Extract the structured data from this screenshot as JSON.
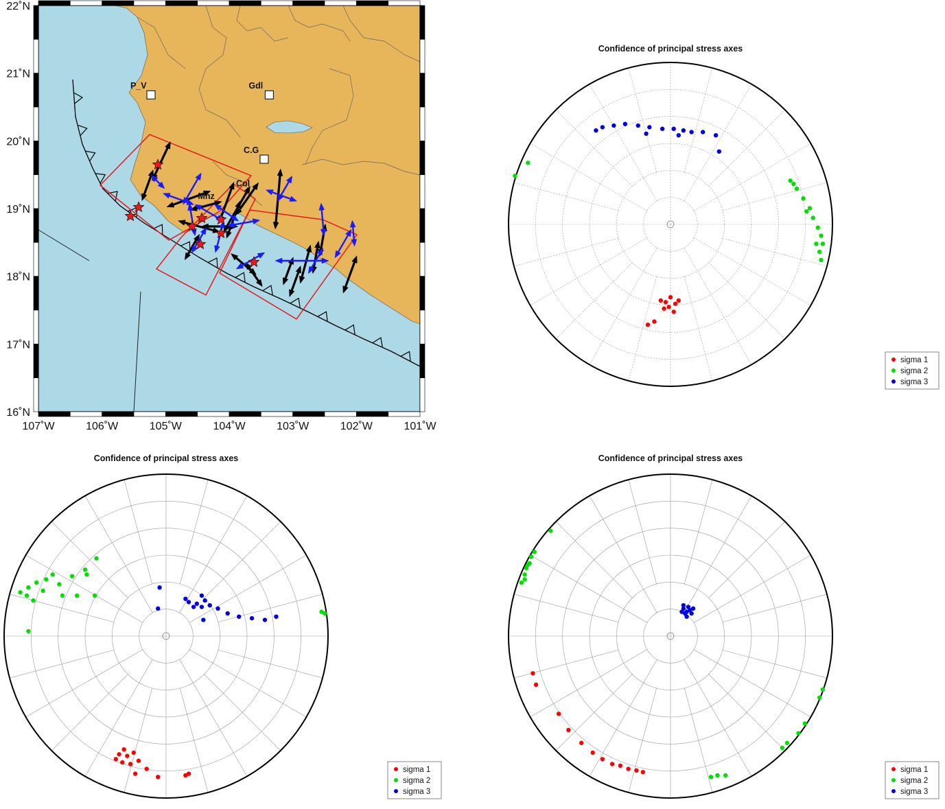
{
  "map": {
    "lat_ticks": [
      "16˚N",
      "17˚N",
      "18˚N",
      "19˚N",
      "20˚N",
      "21˚N",
      "22˚N"
    ],
    "lon_ticks": [
      "107˚W",
      "106˚W",
      "105˚W",
      "104˚W",
      "103˚W",
      "102˚W",
      "101˚W"
    ],
    "lon_range": [
      -107,
      -101
    ],
    "lat_range": [
      16,
      22
    ],
    "cities": [
      {
        "label": "P_V",
        "lon": -105.23,
        "lat": 20.68
      },
      {
        "label": "Gdl",
        "lon": -103.37,
        "lat": 20.68
      },
      {
        "label": "C.G",
        "lon": -103.45,
        "lat": 19.73
      },
      {
        "label": "Mnz",
        "lon": -104.33,
        "lat": 19.05
      },
      {
        "label": "Col",
        "lon": -103.73,
        "lat": 19.24
      }
    ],
    "colors": {
      "sea": "#add8e6",
      "land": "#e8b65a",
      "box": "#e41a1c",
      "sigma1_arrow": "#000000",
      "sigma3_arrow": "#1a1aff",
      "star": "#e41a1c"
    }
  },
  "stereonets": [
    {
      "title": "Confidence of principal stress axes",
      "legend": [
        "sigma 1",
        "sigma 2",
        "sigma 3"
      ],
      "clusters": [
        {
          "name": "sigma 1",
          "color": "#ff0000",
          "points": [
            [
              -0.03,
              -0.48
            ],
            [
              0.03,
              -0.49
            ],
            [
              -0.01,
              -0.51
            ],
            [
              -0.06,
              -0.47
            ],
            [
              0.05,
              -0.47
            ],
            [
              0.0,
              -0.45
            ],
            [
              -0.04,
              -0.52
            ],
            [
              0.02,
              -0.54
            ],
            [
              -0.1,
              -0.6
            ],
            [
              -0.14,
              -0.62
            ]
          ]
        },
        {
          "name": "sigma 2",
          "color": "#00e000",
          "points": [
            [
              0.74,
              0.27
            ],
            [
              0.78,
              0.22
            ],
            [
              0.82,
              0.16
            ],
            [
              0.86,
              0.1
            ],
            [
              0.88,
              0.04
            ],
            [
              0.91,
              -0.02
            ],
            [
              0.93,
              -0.07
            ],
            [
              0.94,
              -0.12
            ],
            [
              0.92,
              -0.17
            ],
            [
              0.93,
              -0.22
            ],
            [
              0.9,
              -0.12
            ],
            [
              0.84,
              0.08
            ],
            [
              -0.88,
              0.38
            ],
            [
              -0.96,
              0.3
            ],
            [
              0.76,
              0.25
            ]
          ]
        },
        {
          "name": "sigma 3",
          "color": "#0000e0",
          "points": [
            [
              -0.42,
              0.6
            ],
            [
              -0.35,
              0.61
            ],
            [
              -0.28,
              0.62
            ],
            [
              -0.2,
              0.61
            ],
            [
              -0.13,
              0.6
            ],
            [
              -0.05,
              0.59
            ],
            [
              0.02,
              0.59
            ],
            [
              0.08,
              0.58
            ],
            [
              0.13,
              0.57
            ],
            [
              0.2,
              0.57
            ],
            [
              0.28,
              0.55
            ],
            [
              0.3,
              0.45
            ],
            [
              -0.46,
              0.58
            ],
            [
              -0.15,
              0.56
            ],
            [
              0.05,
              0.55
            ]
          ]
        }
      ]
    },
    {
      "title": "Confidence of principal stress axes",
      "legend": [
        "sigma 1",
        "sigma 2",
        "sigma 3"
      ],
      "clusters": [
        {
          "name": "sigma 1",
          "color": "#ff0000",
          "points": [
            [
              -0.29,
              -0.73
            ],
            [
              -0.24,
              -0.74
            ],
            [
              -0.27,
              -0.78
            ],
            [
              -0.22,
              -0.79
            ],
            [
              -0.31,
              -0.76
            ],
            [
              -0.2,
              -0.72
            ],
            [
              -0.26,
              -0.7
            ],
            [
              -0.17,
              -0.77
            ],
            [
              -0.12,
              -0.82
            ],
            [
              -0.05,
              -0.87
            ],
            [
              0.12,
              -0.86
            ],
            [
              0.14,
              -0.85
            ],
            [
              -0.19,
              -0.85
            ]
          ]
        },
        {
          "name": "sigma 2",
          "color": "#00e000",
          "points": [
            [
              -0.9,
              0.27
            ],
            [
              -0.85,
              0.3
            ],
            [
              -0.8,
              0.33
            ],
            [
              -0.74,
              0.35
            ],
            [
              -0.7,
              0.38
            ],
            [
              -0.86,
              0.25
            ],
            [
              -0.82,
              0.22
            ],
            [
              -0.76,
              0.28
            ],
            [
              -0.66,
              0.32
            ],
            [
              -0.58,
              0.37
            ],
            [
              -0.5,
              0.41
            ],
            [
              -0.43,
              0.48
            ],
            [
              -0.49,
              0.38
            ],
            [
              -0.44,
              0.25
            ],
            [
              -0.55,
              0.25
            ],
            [
              -0.64,
              0.25
            ],
            [
              -0.85,
              0.03
            ],
            [
              0.96,
              0.15
            ],
            [
              0.98,
              0.14
            ]
          ]
        },
        {
          "name": "sigma 3",
          "color": "#0000e0",
          "points": [
            [
              0.14,
              0.21
            ],
            [
              0.19,
              0.2
            ],
            [
              0.22,
              0.18
            ],
            [
              0.17,
              0.18
            ],
            [
              0.24,
              0.22
            ],
            [
              0.12,
              0.23
            ],
            [
              0.22,
              0.25
            ],
            [
              0.27,
              0.19
            ],
            [
              0.32,
              0.17
            ],
            [
              0.38,
              0.14
            ],
            [
              0.45,
              0.12
            ],
            [
              0.53,
              0.11
            ],
            [
              0.61,
              0.1
            ],
            [
              0.68,
              0.12
            ],
            [
              0.23,
              0.1
            ],
            [
              -0.04,
              0.3
            ],
            [
              -0.05,
              0.17
            ]
          ]
        }
      ]
    },
    {
      "title": "Confidence of principal stress axes",
      "legend": [
        "sigma 1",
        "sigma 2",
        "sigma 3"
      ],
      "clusters": [
        {
          "name": "sigma 1",
          "color": "#ff0000",
          "points": [
            [
              -0.36,
              -0.79
            ],
            [
              -0.31,
              -0.8
            ],
            [
              -0.26,
              -0.82
            ],
            [
              -0.21,
              -0.83
            ],
            [
              -0.17,
              -0.84
            ],
            [
              -0.42,
              -0.76
            ],
            [
              -0.48,
              -0.72
            ],
            [
              -0.55,
              -0.66
            ],
            [
              -0.63,
              -0.58
            ],
            [
              -0.69,
              -0.48
            ],
            [
              -0.85,
              -0.23
            ],
            [
              -0.83,
              -0.3
            ]
          ]
        },
        {
          "name": "sigma 2",
          "color": "#00e000",
          "points": [
            [
              -0.92,
              0.33
            ],
            [
              -0.9,
              0.38
            ],
            [
              -0.89,
              0.42
            ],
            [
              -0.87,
              0.45
            ],
            [
              -0.86,
              0.49
            ],
            [
              -0.84,
              0.52
            ],
            [
              -0.9,
              0.35
            ],
            [
              -0.88,
              0.44
            ],
            [
              -0.74,
              0.65
            ],
            [
              0.94,
              -0.33
            ],
            [
              0.92,
              -0.38
            ],
            [
              0.83,
              -0.54
            ],
            [
              0.79,
              -0.6
            ],
            [
              0.72,
              -0.66
            ],
            [
              0.69,
              -0.69
            ],
            [
              0.34,
              -0.86
            ],
            [
              0.25,
              -0.87
            ],
            [
              0.29,
              -0.86
            ]
          ]
        },
        {
          "name": "sigma 3",
          "color": "#0000e0",
          "points": [
            [
              0.08,
              0.17
            ],
            [
              0.1,
              0.15
            ],
            [
              0.12,
              0.16
            ],
            [
              0.09,
              0.14
            ],
            [
              0.11,
              0.18
            ],
            [
              0.13,
              0.14
            ],
            [
              0.07,
              0.15
            ],
            [
              0.1,
              0.12
            ],
            [
              0.14,
              0.17
            ],
            [
              0.08,
              0.19
            ]
          ]
        }
      ]
    }
  ]
}
